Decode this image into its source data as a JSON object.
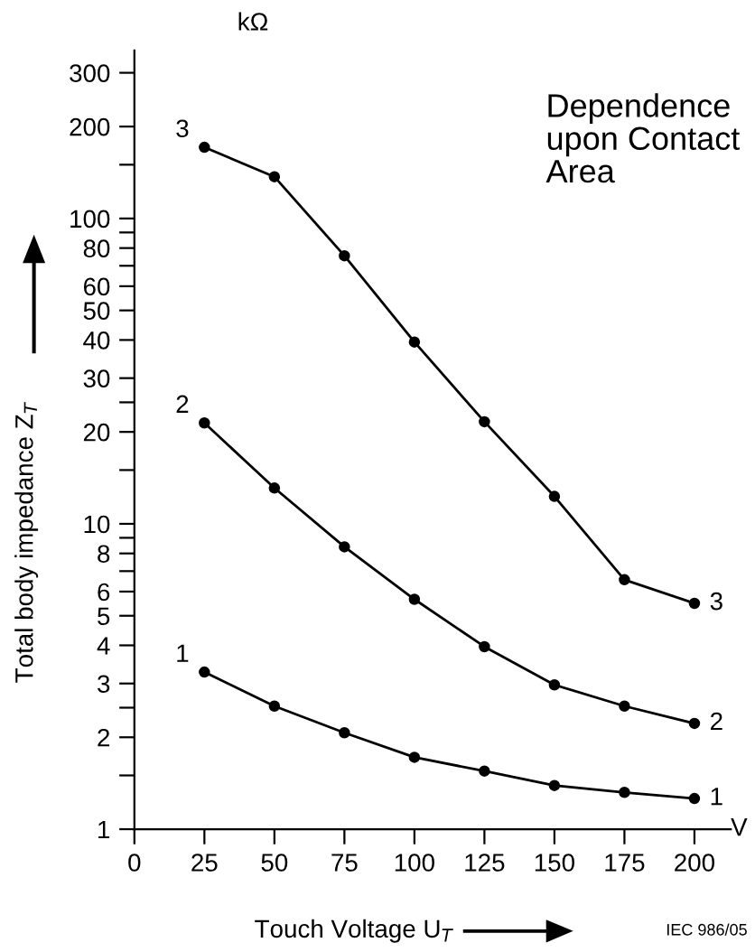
{
  "chart_data": {
    "type": "line",
    "title": "Dependence\nupon Contact\nArea",
    "xlabel": "Touch Voltage U$_{T}$",
    "ylabel": "Total body impedance Z$_{T}$",
    "annotations": [
      "kΩ",
      "V",
      "IEC 986/05"
    ],
    "log": "y",
    "xlim": [
      0,
      213
    ],
    "ylim": [
      1,
      355
    ],
    "xticks": [
      0,
      25,
      50,
      75,
      100,
      125,
      150,
      175,
      200
    ],
    "yticks": [
      1,
      {
        "value": 1.5,
        "label": null
      },
      2,
      {
        "value": 2.5,
        "label": null
      },
      3,
      4,
      5,
      6,
      {
        "value": 7,
        "label": null
      },
      8,
      {
        "value": 9,
        "label": null
      },
      10,
      {
        "value": 15,
        "label": null
      },
      20,
      {
        "value": 25,
        "label": null
      },
      30,
      40,
      50,
      60,
      {
        "value": 70,
        "label": null
      },
      80,
      {
        "value": 90,
        "label": null
      },
      100,
      {
        "value": 150,
        "label": null
      },
      200,
      300
    ],
    "x": [
      25,
      50,
      75,
      100,
      125,
      150,
      175,
      200
    ],
    "marker": "circle",
    "line_style": "solid",
    "grid": false,
    "legend": false,
    "series": [
      {
        "name": "1",
        "color": "#000000",
        "values": [
          3.27,
          2.53,
          2.07,
          1.72,
          1.55,
          1.39,
          1.32,
          1.26
        ]
      },
      {
        "name": "2",
        "color": "#000000",
        "values": [
          21.4,
          13.1,
          8.41,
          5.66,
          3.96,
          2.97,
          2.53,
          2.22
        ]
      },
      {
        "name": "3",
        "color": "#000000",
        "values": [
          171,
          137,
          75.5,
          39.4,
          21.6,
          12.3,
          6.56,
          5.49
        ]
      }
    ]
  }
}
